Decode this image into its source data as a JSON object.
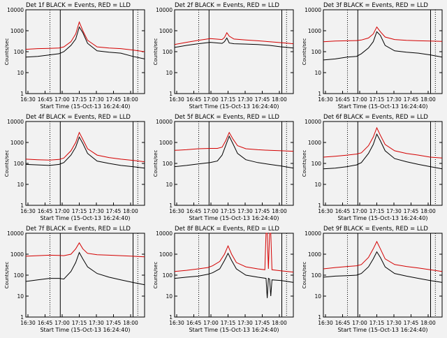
{
  "colors": {
    "background": "#f2f2f2",
    "axis": "#000000",
    "events": "#000000",
    "lld": "#d40000"
  },
  "chart_data": [
    {
      "type": "line",
      "title": "Det 1f BLACK = Events, RED = LLD",
      "xlabel": "Start Time (15-Oct-13 16:24:40)",
      "ylabel": "Counts/sec",
      "y_scale": "log",
      "ylim": [
        1,
        10000
      ],
      "yticks": [
        "1",
        "10",
        "100",
        "1000",
        "10000"
      ],
      "x_unit": "minutes after 16:24:40",
      "xlim": [
        0,
        100
      ],
      "xticks": [
        "16:30",
        "16:45",
        "17:00",
        "17:15",
        "17:30",
        "17:45",
        "18:00"
      ],
      "vlines": {
        "dotted": [
          20.3,
          94.3
        ],
        "solid": [
          29,
          90.3
        ]
      },
      "series": [
        {
          "name": "Events",
          "color": "#000000",
          "x": [
            0,
            10,
            20,
            28,
            32,
            38,
            42,
            45,
            48,
            52,
            60,
            70,
            80,
            90,
            100
          ],
          "y": [
            55,
            60,
            70,
            80,
            100,
            200,
            400,
            1500,
            800,
            250,
            110,
            95,
            85,
            60,
            45
          ]
        },
        {
          "name": "LLD",
          "color": "#d40000",
          "x": [
            0,
            10,
            20,
            28,
            32,
            38,
            42,
            45,
            48,
            52,
            60,
            70,
            80,
            90,
            100
          ],
          "y": [
            130,
            140,
            145,
            150,
            170,
            300,
            700,
            2600,
            1000,
            350,
            170,
            150,
            140,
            120,
            100
          ]
        }
      ]
    },
    {
      "type": "line",
      "title": "Det 2f BLACK = Events, RED = LLD",
      "xlabel": "Start Time (15-Oct-13 16:24:40)",
      "ylabel": "Counts/sec",
      "y_scale": "log",
      "ylim": [
        1,
        10000
      ],
      "yticks": [
        "1",
        "10",
        "100",
        "1000",
        "10000"
      ],
      "x_unit": "minutes after 16:24:40",
      "xlim": [
        0,
        100
      ],
      "xticks": [
        "16:30",
        "16:45",
        "17:00",
        "17:15",
        "17:30",
        "17:45",
        "18:00"
      ],
      "vlines": {
        "dotted": [
          20.3,
          94.3
        ],
        "solid": [
          29,
          90.3
        ]
      },
      "series": [
        {
          "name": "Events",
          "color": "#000000",
          "x": [
            0,
            10,
            20,
            30,
            40,
            42,
            44,
            46,
            50,
            60,
            70,
            80,
            90,
            100
          ],
          "y": [
            160,
            200,
            240,
            280,
            250,
            300,
            450,
            260,
            240,
            230,
            220,
            200,
            170,
            150
          ]
        },
        {
          "name": "LLD",
          "color": "#d40000",
          "x": [
            0,
            10,
            20,
            30,
            40,
            42,
            44,
            46,
            50,
            60,
            70,
            80,
            90,
            100
          ],
          "y": [
            220,
            280,
            350,
            420,
            380,
            480,
            800,
            550,
            400,
            360,
            330,
            300,
            270,
            240
          ]
        }
      ]
    },
    {
      "type": "line",
      "title": "Det 3f BLACK = Events, RED = LLD",
      "xlabel": "Start Time (15-Oct-13 16:24:40)",
      "ylabel": "Counts/sec",
      "y_scale": "log",
      "ylim": [
        1,
        10000
      ],
      "yticks": [
        "1",
        "10",
        "100",
        "1000",
        "10000"
      ],
      "x_unit": "minutes after 16:24:40",
      "xlim": [
        0,
        100
      ],
      "xticks": [
        "16:30",
        "16:45",
        "17:00",
        "17:15",
        "17:30",
        "17:45",
        "18:00"
      ],
      "vlines": {
        "dotted": [
          20.3,
          94.3
        ],
        "solid": [
          29,
          90.3
        ]
      },
      "series": [
        {
          "name": "Events",
          "color": "#000000",
          "x": [
            0,
            10,
            20,
            28,
            32,
            38,
            42,
            45,
            48,
            52,
            60,
            70,
            80,
            90,
            100
          ],
          "y": [
            40,
            45,
            55,
            60,
            80,
            150,
            300,
            900,
            600,
            200,
            110,
            95,
            85,
            70,
            55
          ]
        },
        {
          "name": "LLD",
          "color": "#d40000",
          "x": [
            0,
            10,
            20,
            28,
            32,
            38,
            42,
            45,
            48,
            52,
            60,
            70,
            80,
            90,
            100
          ],
          "y": [
            300,
            320,
            330,
            340,
            360,
            450,
            700,
            1500,
            900,
            500,
            380,
            350,
            330,
            320,
            310
          ]
        }
      ]
    },
    {
      "type": "line",
      "title": "Det 4f BLACK = Events, RED = LLD",
      "xlabel": "Start Time (15-Oct-13 16:24:40)",
      "ylabel": "Counts/sec",
      "y_scale": "log",
      "ylim": [
        1,
        10000
      ],
      "yticks": [
        "1",
        "10",
        "100",
        "1000",
        "10000"
      ],
      "x_unit": "minutes after 16:24:40",
      "xlim": [
        0,
        100
      ],
      "xticks": [
        "16:30",
        "16:45",
        "17:00",
        "17:15",
        "17:30",
        "17:45",
        "18:00"
      ],
      "vlines": {
        "dotted": [
          20.3,
          94.3
        ],
        "solid": [
          29,
          90.3
        ]
      },
      "series": [
        {
          "name": "Events",
          "color": "#000000",
          "x": [
            0,
            10,
            20,
            28,
            32,
            38,
            42,
            45,
            48,
            52,
            60,
            70,
            80,
            90,
            100
          ],
          "y": [
            90,
            85,
            80,
            90,
            110,
            250,
            600,
            1800,
            900,
            300,
            130,
            100,
            80,
            70,
            60
          ]
        },
        {
          "name": "LLD",
          "color": "#d40000",
          "x": [
            0,
            10,
            20,
            28,
            32,
            38,
            42,
            45,
            48,
            52,
            60,
            70,
            80,
            90,
            100
          ],
          "y": [
            160,
            150,
            145,
            155,
            180,
            400,
            1000,
            3000,
            1400,
            500,
            250,
            190,
            160,
            140,
            120
          ]
        }
      ]
    },
    {
      "type": "line",
      "title": "Det 5f BLACK = Events, RED = LLD",
      "xlabel": "Start Time (15-Oct-13 16:24:40)",
      "ylabel": "Counts/sec",
      "y_scale": "log",
      "ylim": [
        1,
        10000
      ],
      "yticks": [
        "1",
        "10",
        "100",
        "1000",
        "10000"
      ],
      "x_unit": "minutes after 16:24:40",
      "xlim": [
        0,
        100
      ],
      "xticks": [
        "16:30",
        "16:45",
        "17:00",
        "17:15",
        "17:30",
        "17:45",
        "18:00"
      ],
      "vlines": {
        "dotted": [
          20.3,
          94.3
        ],
        "solid": [
          29,
          90.3
        ]
      },
      "series": [
        {
          "name": "Events",
          "color": "#000000",
          "x": [
            0,
            10,
            20,
            30,
            36,
            40,
            43,
            46,
            49,
            53,
            60,
            70,
            80,
            90,
            100
          ],
          "y": [
            70,
            80,
            95,
            110,
            130,
            250,
            700,
            2000,
            900,
            300,
            150,
            110,
            90,
            75,
            60
          ]
        },
        {
          "name": "LLD",
          "color": "#d40000",
          "x": [
            0,
            10,
            20,
            30,
            36,
            40,
            43,
            46,
            49,
            53,
            60,
            70,
            80,
            90,
            100
          ],
          "y": [
            420,
            450,
            500,
            520,
            520,
            600,
            1200,
            3000,
            1500,
            700,
            500,
            450,
            420,
            400,
            380
          ]
        }
      ]
    },
    {
      "type": "line",
      "title": "Det 6f BLACK = Events, RED = LLD",
      "xlabel": "Start Time (15-Oct-13 16:24:40)",
      "ylabel": "Counts/sec",
      "y_scale": "log",
      "ylim": [
        1,
        10000
      ],
      "yticks": [
        "1",
        "10",
        "100",
        "1000",
        "10000"
      ],
      "x_unit": "minutes after 16:24:40",
      "xlim": [
        0,
        100
      ],
      "xticks": [
        "16:30",
        "16:45",
        "17:00",
        "17:15",
        "17:30",
        "17:45",
        "18:00"
      ],
      "vlines": {
        "dotted": [
          20.3,
          94.3
        ],
        "solid": [
          29,
          90.3
        ]
      },
      "series": [
        {
          "name": "Events",
          "color": "#000000",
          "x": [
            0,
            10,
            20,
            28,
            32,
            38,
            42,
            45,
            48,
            52,
            60,
            70,
            80,
            90,
            100
          ],
          "y": [
            55,
            60,
            70,
            85,
            110,
            300,
            800,
            2500,
            1200,
            400,
            170,
            120,
            90,
            70,
            55
          ]
        },
        {
          "name": "LLD",
          "color": "#d40000",
          "x": [
            0,
            10,
            20,
            28,
            32,
            38,
            42,
            45,
            48,
            52,
            60,
            70,
            80,
            90,
            100
          ],
          "y": [
            200,
            220,
            250,
            280,
            320,
            700,
            1800,
            5000,
            2200,
            800,
            400,
            300,
            250,
            200,
            180
          ]
        }
      ]
    },
    {
      "type": "line",
      "title": "Det 7f BLACK = Events, RED = LLD",
      "xlabel": "Start Time (15-Oct-13 16:24:40)",
      "ylabel": "Counts/sec",
      "y_scale": "log",
      "ylim": [
        1,
        10000
      ],
      "yticks": [
        "1",
        "10",
        "100",
        "1000",
        "10000"
      ],
      "x_unit": "minutes after 16:24:40",
      "xlim": [
        0,
        100
      ],
      "xticks": [
        "16:30",
        "16:45",
        "17:00",
        "17:15",
        "17:30",
        "17:45",
        "18:00"
      ],
      "vlines": {
        "dotted": [
          20.3,
          94.3
        ],
        "solid": [
          29,
          90.3
        ]
      },
      "series": [
        {
          "name": "Events",
          "color": "#000000",
          "x": [
            0,
            10,
            20,
            28,
            32,
            38,
            42,
            45,
            48,
            52,
            60,
            70,
            80,
            90,
            100
          ],
          "y": [
            50,
            60,
            70,
            70,
            65,
            150,
            400,
            1200,
            600,
            250,
            120,
            80,
            60,
            45,
            35
          ]
        },
        {
          "name": "LLD",
          "color": "#d40000",
          "x": [
            0,
            10,
            20,
            28,
            32,
            38,
            42,
            45,
            48,
            52,
            60,
            70,
            80,
            90,
            100
          ],
          "y": [
            800,
            850,
            900,
            880,
            850,
            1000,
            1800,
            3500,
            1800,
            1100,
            950,
            900,
            850,
            800,
            750
          ]
        }
      ]
    },
    {
      "type": "line",
      "title": "Det 8f BLACK = Events, RED = LLD",
      "xlabel": "Start Time (15-Oct-13 16:24:40)",
      "ylabel": "Counts/sec",
      "y_scale": "log",
      "ylim": [
        1,
        10000
      ],
      "yticks": [
        "1",
        "10",
        "100",
        "1000",
        "10000"
      ],
      "x_unit": "minutes after 16:24:40",
      "xlim": [
        0,
        100
      ],
      "xticks": [
        "16:30",
        "16:45",
        "17:00",
        "17:15",
        "17:30",
        "17:45",
        "18:00"
      ],
      "vlines": {
        "dotted": [
          20.3,
          94.3
        ],
        "solid": [
          29,
          90.3
        ]
      },
      "series": [
        {
          "name": "Events",
          "color": "#000000",
          "x": [
            0,
            10,
            20,
            28,
            32,
            38,
            42,
            45,
            48,
            52,
            60,
            70,
            77,
            78,
            79,
            80,
            81,
            82,
            90,
            100
          ],
          "y": [
            70,
            80,
            90,
            110,
            130,
            200,
            500,
            1100,
            500,
            200,
            100,
            80,
            70,
            8,
            70,
            65,
            10,
            60,
            55,
            45
          ]
        },
        {
          "name": "LLD",
          "color": "#d40000",
          "x": [
            0,
            10,
            20,
            28,
            32,
            38,
            42,
            45,
            48,
            52,
            60,
            70,
            76,
            77,
            78,
            79,
            80,
            81,
            82,
            90,
            100
          ],
          "y": [
            150,
            170,
            200,
            230,
            280,
            450,
            1000,
            2500,
            1000,
            400,
            250,
            200,
            180,
            10000,
            10000,
            200,
            10000,
            10000,
            180,
            160,
            140
          ]
        }
      ]
    },
    {
      "type": "line",
      "title": "Det 9f BLACK = Events, RED = LLD",
      "xlabel": "Start Time (15-Oct-13 16:24:40)",
      "ylabel": "Counts/sec",
      "y_scale": "log",
      "ylim": [
        1,
        10000
      ],
      "yticks": [
        "1",
        "10",
        "100",
        "1000",
        "10000"
      ],
      "x_unit": "minutes after 16:24:40",
      "xlim": [
        0,
        100
      ],
      "xticks": [
        "16:30",
        "16:45",
        "17:00",
        "17:15",
        "17:30",
        "17:45",
        "18:00"
      ],
      "vlines": {
        "dotted": [
          20.3,
          94.3
        ],
        "solid": [
          29,
          90.3
        ]
      },
      "series": [
        {
          "name": "Events",
          "color": "#000000",
          "x": [
            0,
            10,
            20,
            28,
            32,
            38,
            42,
            45,
            48,
            52,
            60,
            70,
            80,
            90,
            100
          ],
          "y": [
            80,
            90,
            95,
            100,
            120,
            250,
            600,
            1300,
            700,
            250,
            120,
            90,
            70,
            55,
            45
          ]
        },
        {
          "name": "LLD",
          "color": "#d40000",
          "x": [
            0,
            10,
            20,
            28,
            32,
            38,
            42,
            45,
            48,
            52,
            60,
            70,
            80,
            90,
            100
          ],
          "y": [
            200,
            230,
            260,
            280,
            320,
            700,
            1800,
            4000,
            1800,
            600,
            320,
            260,
            220,
            180,
            150
          ]
        }
      ]
    }
  ]
}
